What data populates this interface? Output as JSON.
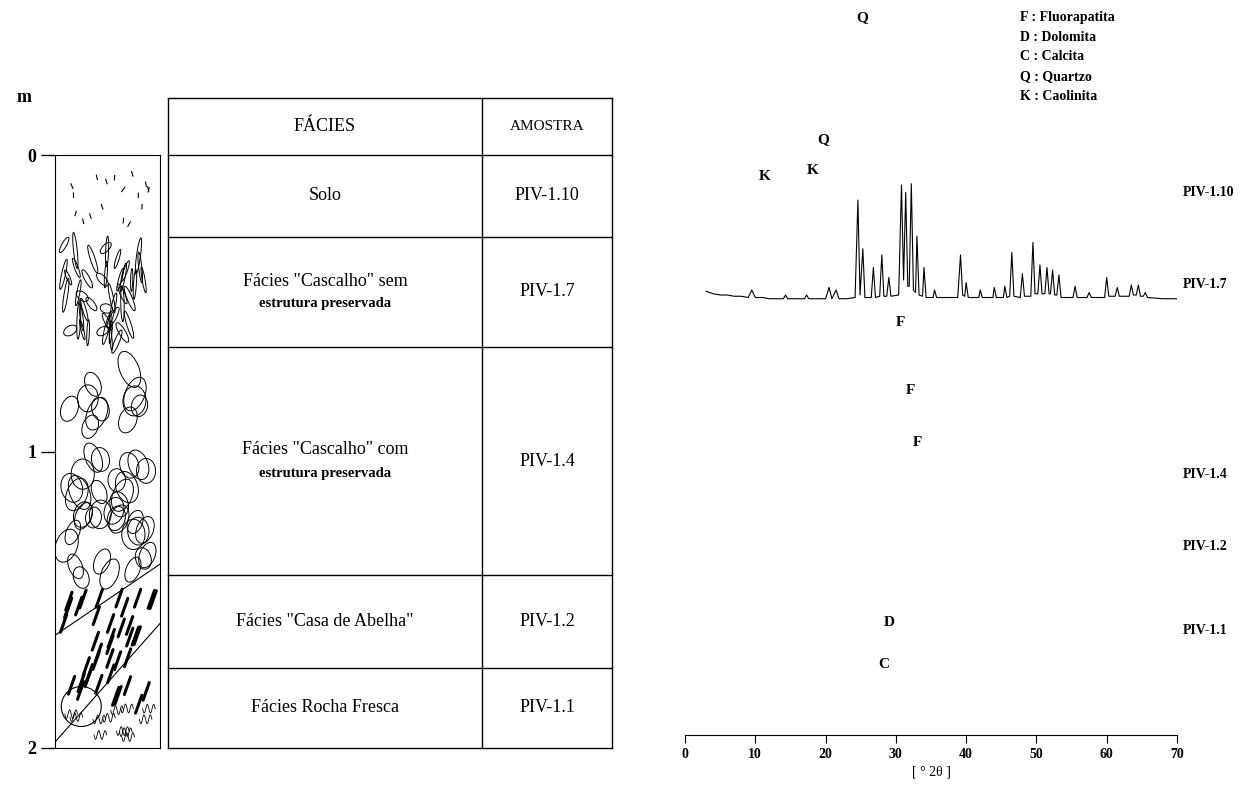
{
  "column": {
    "unit": "m",
    "depth_range": [
      0,
      2
    ],
    "depth_ticks": [
      0,
      1,
      2
    ]
  },
  "table": {
    "header": [
      "FÁCIES",
      "AMOSTRA"
    ],
    "rows": [
      {
        "facies": [
          "Solo"
        ],
        "sample": "PIV-1.10"
      },
      {
        "facies": [
          "Fácies \"Cascalho\" sem",
          "estrutura preservada"
        ],
        "sample": "PIV-1.7"
      },
      {
        "facies": [
          "Fácies \"Cascalho\" com",
          "estrutura preservada"
        ],
        "sample": "PIV-1.4"
      },
      {
        "facies": [
          "Fácies \"Casa de Abelha\""
        ],
        "sample": "PIV-1.2"
      },
      {
        "facies": [
          "Fácies Rocha Fresca"
        ],
        "sample": "PIV-1.1"
      }
    ]
  },
  "mineral_key": [
    "F : Fluorapatita",
    "D : Dolomita",
    "C : Calcita",
    "Q : Quartzo",
    "K : Caolinita"
  ],
  "chart_data": {
    "type": "line",
    "xlabel": "[ ° 2θ ]",
    "xlim": [
      0,
      70
    ],
    "xticks": [
      0,
      10,
      20,
      30,
      40,
      50,
      60,
      70
    ],
    "ylim": [
      0,
      100
    ],
    "tick_labels": "x",
    "sample_labels": [
      "PIV-1.10",
      "PIV-1.7",
      "PIV-1.4",
      "PIV-1.2",
      "PIV-1.1"
    ],
    "annotations": [
      {
        "text": "Q",
        "x": 25.2
      },
      {
        "text": "Q",
        "x": 19.6
      },
      {
        "text": "K",
        "x": 11.4
      },
      {
        "text": "K",
        "x": 18.2
      },
      {
        "text": "F",
        "x": 30.7
      },
      {
        "text": "F",
        "x": 32.1
      },
      {
        "text": "F",
        "x": 33.1
      },
      {
        "text": "D",
        "x": 29.0
      },
      {
        "text": "C",
        "x": 28.3
      }
    ],
    "series": [
      {
        "color": "#000000",
        "x": [
          3.0,
          4.0,
          5.0,
          6.0,
          7.0,
          8.0,
          9.0,
          9.5,
          10.0,
          11.0,
          12.0,
          13.0,
          14.0,
          14.3,
          14.6,
          16.0,
          17.0,
          17.3,
          17.6,
          19.0,
          20.0,
          20.5,
          20.9,
          21.5,
          21.9,
          23.0,
          24.2,
          24.6,
          24.9,
          25.3,
          25.6,
          26.5,
          26.8,
          27.1,
          27.7,
          28.0,
          28.3,
          28.7,
          29.0,
          29.3,
          30.4,
          30.8,
          31.1,
          31.4,
          31.7,
          31.9,
          32.2,
          32.5,
          32.8,
          33.0,
          33.3,
          33.8,
          34.0,
          34.3,
          35.3,
          35.5,
          35.8,
          38.8,
          39.2,
          39.5,
          39.8,
          40.0,
          40.3,
          41.8,
          42.0,
          42.3,
          43.8,
          44.0,
          44.3,
          45.3,
          45.5,
          45.8,
          46.2,
          46.5,
          46.8,
          47.7,
          48.0,
          48.3,
          49.2,
          49.5,
          49.8,
          50.2,
          50.5,
          50.8,
          51.2,
          51.5,
          51.8,
          52.0,
          52.3,
          52.6,
          52.9,
          53.2,
          53.5,
          55.2,
          55.5,
          55.8,
          57.2,
          57.5,
          57.8,
          59.7,
          60.0,
          60.3,
          61.2,
          61.5,
          61.8,
          63.2,
          63.5,
          63.8,
          64.2,
          64.5,
          64.8,
          65.2,
          65.5,
          65.8,
          68.0,
          70.0
        ],
        "values": [
          11,
          9,
          8,
          8,
          7,
          7,
          6,
          12,
          6,
          6,
          5,
          5,
          5,
          8,
          5,
          5,
          5,
          8,
          5,
          5,
          5,
          14,
          5,
          12,
          5,
          5,
          6,
          84,
          8,
          45,
          6,
          6,
          30,
          6,
          7,
          40,
          7,
          7,
          22,
          7,
          8,
          96,
          20,
          90,
          15,
          15,
          97,
          12,
          10,
          55,
          8,
          7,
          30,
          6,
          6,
          12,
          6,
          6,
          40,
          8,
          7,
          18,
          6,
          6,
          12,
          6,
          6,
          14,
          6,
          6,
          15,
          6,
          7,
          42,
          7,
          6,
          25,
          7,
          7,
          50,
          9,
          9,
          32,
          9,
          9,
          30,
          9,
          9,
          28,
          8,
          8,
          24,
          6,
          6,
          15,
          6,
          6,
          10,
          6,
          6,
          22,
          7,
          7,
          14,
          7,
          7,
          16,
          8,
          8,
          16,
          7,
          7,
          10,
          6,
          5,
          5
        ]
      }
    ]
  }
}
